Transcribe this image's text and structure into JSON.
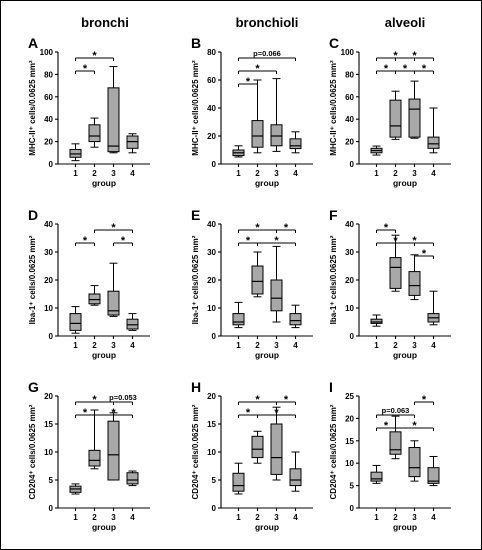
{
  "column_titles": [
    "bronchi",
    "bronchioli",
    "alveoli"
  ],
  "chart_data": [
    {
      "id": "A",
      "type": "boxplot",
      "title": "",
      "ylabel": "MHC-II⁺ cells/0.0625 mm²",
      "xlabel": "group",
      "categories": [
        "1",
        "2",
        "3",
        "4"
      ],
      "ylim": [
        0,
        100
      ],
      "yticks": [
        0,
        20,
        40,
        60,
        80,
        100
      ],
      "boxes": [
        {
          "category": "1",
          "min": 3,
          "q1": 6,
          "median": 9,
          "q3": 13,
          "max": 18
        },
        {
          "category": "2",
          "min": 15,
          "q1": 20,
          "median": 25,
          "q3": 35,
          "max": 41
        },
        {
          "category": "3",
          "min": 10,
          "q1": 11,
          "median": 16,
          "q3": 68,
          "max": 87
        },
        {
          "category": "4",
          "min": 10,
          "q1": 14,
          "median": 20,
          "q3": 25,
          "max": 27
        }
      ],
      "annotations": [
        {
          "from": "1",
          "to": "2",
          "label": "*"
        },
        {
          "from": "1",
          "to": "3",
          "label": "*"
        }
      ]
    },
    {
      "id": "B",
      "type": "boxplot",
      "title": "",
      "ylabel": "MHC-II⁺ cells/0.0625 mm²",
      "xlabel": "group",
      "categories": [
        "1",
        "2",
        "3",
        "4"
      ],
      "ylim": [
        0,
        80
      ],
      "yticks": [
        0,
        20,
        40,
        60,
        80
      ],
      "boxes": [
        {
          "category": "1",
          "min": 5,
          "q1": 6,
          "median": 8,
          "q3": 10,
          "max": 13
        },
        {
          "category": "2",
          "min": 8,
          "q1": 12,
          "median": 20,
          "q3": 31,
          "max": 60
        },
        {
          "category": "3",
          "min": 9,
          "q1": 13,
          "median": 20,
          "q3": 28,
          "max": 61
        },
        {
          "category": "4",
          "min": 8,
          "q1": 11,
          "median": 13,
          "q3": 18,
          "max": 23
        }
      ],
      "annotations": [
        {
          "from": "1",
          "to": "2",
          "label": "*"
        },
        {
          "from": "1",
          "to": "3",
          "label": "*"
        },
        {
          "from": "1",
          "to": "4",
          "label": "p=0.066"
        }
      ]
    },
    {
      "id": "C",
      "type": "boxplot",
      "title": "",
      "ylabel": "MHC-II⁺ cells/0.0625 mm²",
      "xlabel": "group",
      "categories": [
        "1",
        "2",
        "3",
        "4"
      ],
      "ylim": [
        0,
        100
      ],
      "yticks": [
        0,
        20,
        40,
        60,
        80,
        100
      ],
      "boxes": [
        {
          "category": "1",
          "min": 8,
          "q1": 10,
          "median": 12,
          "q3": 14,
          "max": 16
        },
        {
          "category": "2",
          "min": 22,
          "q1": 24,
          "median": 34,
          "q3": 57,
          "max": 65
        },
        {
          "category": "3",
          "min": 23,
          "q1": 24,
          "median": 49,
          "q3": 58,
          "max": 74
        },
        {
          "category": "4",
          "min": 10,
          "q1": 14,
          "median": 18,
          "q3": 24,
          "max": 50
        }
      ],
      "annotations": [
        {
          "from": "1",
          "to": "2",
          "label": "*"
        },
        {
          "from": "2",
          "to": "3",
          "label": "*"
        },
        {
          "from": "1",
          "to": "3",
          "label": "*"
        },
        {
          "from": "3",
          "to": "4",
          "label": "*"
        },
        {
          "from": "2",
          "to": "4",
          "label": "*"
        }
      ]
    },
    {
      "id": "D",
      "type": "boxplot",
      "title": "",
      "ylabel": "Iba-1⁺ cells/0.0625 mm²",
      "xlabel": "group",
      "categories": [
        "1",
        "2",
        "3",
        "4"
      ],
      "ylim": [
        0,
        40
      ],
      "yticks": [
        0,
        10,
        20,
        30,
        40
      ],
      "boxes": [
        {
          "category": "1",
          "min": 1,
          "q1": 2,
          "median": 4.5,
          "q3": 8,
          "max": 10.5
        },
        {
          "category": "2",
          "min": 11,
          "q1": 11.5,
          "median": 13,
          "q3": 15,
          "max": 18
        },
        {
          "category": "3",
          "min": 7,
          "q1": 7.5,
          "median": 9,
          "q3": 16,
          "max": 26
        },
        {
          "category": "4",
          "min": 2,
          "q1": 2.5,
          "median": 4,
          "q3": 6,
          "max": 8
        }
      ],
      "annotations": [
        {
          "from": "1",
          "to": "2",
          "label": "*"
        },
        {
          "from": "2",
          "to": "4",
          "label": "*"
        },
        {
          "from": "3",
          "to": "4",
          "label": "*"
        }
      ]
    },
    {
      "id": "E",
      "type": "boxplot",
      "title": "",
      "ylabel": "Iba-1⁺ cells/0.0625 mm²",
      "xlabel": "group",
      "categories": [
        "1",
        "2",
        "3",
        "4"
      ],
      "ylim": [
        0,
        40
      ],
      "yticks": [
        0,
        10,
        20,
        30,
        40
      ],
      "boxes": [
        {
          "category": "1",
          "min": 3,
          "q1": 4,
          "median": 5,
          "q3": 8,
          "max": 12
        },
        {
          "category": "2",
          "min": 14,
          "q1": 15,
          "median": 19.5,
          "q3": 25,
          "max": 30
        },
        {
          "category": "3",
          "min": 5,
          "q1": 9,
          "median": 13.5,
          "q3": 20,
          "max": 32
        },
        {
          "category": "4",
          "min": 3,
          "q1": 4,
          "median": 5.5,
          "q3": 8,
          "max": 11
        }
      ],
      "annotations": [
        {
          "from": "1",
          "to": "2",
          "label": "*"
        },
        {
          "from": "2",
          "to": "4",
          "label": "*"
        },
        {
          "from": "1",
          "to": "3",
          "label": "*"
        },
        {
          "from": "3",
          "to": "4",
          "label": "*"
        }
      ]
    },
    {
      "id": "F",
      "type": "boxplot",
      "title": "",
      "ylabel": "Iba-1⁺ cells/0.0625 mm²",
      "xlabel": "group",
      "categories": [
        "1",
        "2",
        "3",
        "4"
      ],
      "ylim": [
        0,
        40
      ],
      "yticks": [
        0,
        10,
        20,
        30,
        40
      ],
      "boxes": [
        {
          "category": "1",
          "min": 3.5,
          "q1": 4.5,
          "median": 5,
          "q3": 6,
          "max": 7.5
        },
        {
          "category": "2",
          "min": 16,
          "q1": 17,
          "median": 24.5,
          "q3": 28,
          "max": 36
        },
        {
          "category": "3",
          "min": 13,
          "q1": 14.5,
          "median": 18,
          "q3": 23,
          "max": 29
        },
        {
          "category": "4",
          "min": 4,
          "q1": 5,
          "median": 6.5,
          "q3": 8,
          "max": 16
        }
      ],
      "annotations": [
        {
          "from": "1",
          "to": "2",
          "label": "*"
        },
        {
          "from": "1",
          "to": "3",
          "label": "*"
        },
        {
          "from": "2",
          "to": "4",
          "label": "*"
        },
        {
          "from": "3",
          "to": "4",
          "label": "*"
        }
      ]
    },
    {
      "id": "G",
      "type": "boxplot",
      "title": "",
      "ylabel": "CD204⁺ cells/0.0625 mm²",
      "xlabel": "group",
      "categories": [
        "1",
        "2",
        "3",
        "4"
      ],
      "ylim": [
        0,
        20
      ],
      "yticks": [
        0,
        5,
        10,
        15,
        20
      ],
      "boxes": [
        {
          "category": "1",
          "min": 2.5,
          "q1": 2.8,
          "median": 3.4,
          "q3": 3.9,
          "max": 4.3
        },
        {
          "category": "2",
          "min": 7,
          "q1": 7.5,
          "median": 8.5,
          "q3": 10.3,
          "max": 17.5
        },
        {
          "category": "3",
          "min": 5,
          "q1": 5,
          "median": 9.5,
          "q3": 15.5,
          "max": 17
        },
        {
          "category": "4",
          "min": 4,
          "q1": 4.3,
          "median": 5,
          "q3": 6.3,
          "max": 6.6
        }
      ],
      "annotations": [
        {
          "from": "1",
          "to": "2",
          "label": "*"
        },
        {
          "from": "2",
          "to": "4",
          "label": "*"
        },
        {
          "from": "1",
          "to": "3",
          "label": "*"
        },
        {
          "from": "3",
          "to": "4",
          "label": "p=0.053"
        }
      ]
    },
    {
      "id": "H",
      "type": "boxplot",
      "title": "",
      "ylabel": "CD204⁺ cells/0.0625 mm²",
      "xlabel": "group",
      "categories": [
        "1",
        "2",
        "3",
        "4"
      ],
      "ylim": [
        0,
        20
      ],
      "yticks": [
        0,
        5,
        10,
        15,
        20
      ],
      "boxes": [
        {
          "category": "1",
          "min": 2.5,
          "q1": 3,
          "median": 4,
          "q3": 6.2,
          "max": 8
        },
        {
          "category": "2",
          "min": 8,
          "q1": 9,
          "median": 10.5,
          "q3": 12.8,
          "max": 13.7
        },
        {
          "category": "3",
          "min": 5,
          "q1": 6,
          "median": 9,
          "q3": 15,
          "max": 18
        },
        {
          "category": "4",
          "min": 3,
          "q1": 4,
          "median": 5,
          "q3": 7,
          "max": 10
        }
      ],
      "annotations": [
        {
          "from": "1",
          "to": "2",
          "label": "*"
        },
        {
          "from": "2",
          "to": "4",
          "label": "*"
        },
        {
          "from": "1",
          "to": "3",
          "label": "*"
        },
        {
          "from": "3",
          "to": "4",
          "label": "*"
        }
      ]
    },
    {
      "id": "I",
      "type": "boxplot",
      "title": "",
      "ylabel": "CD204⁺ cells/0.0625 mm²",
      "xlabel": "group",
      "categories": [
        "1",
        "2",
        "3",
        "4"
      ],
      "ylim": [
        0,
        25
      ],
      "yticks": [
        0,
        5,
        10,
        15,
        20,
        25
      ],
      "boxes": [
        {
          "category": "1",
          "min": 5.5,
          "q1": 6,
          "median": 6.5,
          "q3": 8,
          "max": 9.5
        },
        {
          "category": "2",
          "min": 11,
          "q1": 12,
          "median": 13,
          "q3": 17,
          "max": 20.5
        },
        {
          "category": "3",
          "min": 6,
          "q1": 7,
          "median": 9,
          "q3": 13.5,
          "max": 15
        },
        {
          "category": "4",
          "min": 5,
          "q1": 5.5,
          "median": 6,
          "q3": 9,
          "max": 11.5
        }
      ],
      "annotations": [
        {
          "from": "1",
          "to": "2",
          "label": "*"
        },
        {
          "from": "2",
          "to": "4",
          "label": "*"
        },
        {
          "from": "1",
          "to": "3",
          "label": "p=0.063"
        },
        {
          "from": "3",
          "to": "4",
          "label": "*"
        }
      ]
    }
  ],
  "colors": {
    "box_fill": "#a8a8a8",
    "line": "#000000",
    "frame": "#000000"
  }
}
